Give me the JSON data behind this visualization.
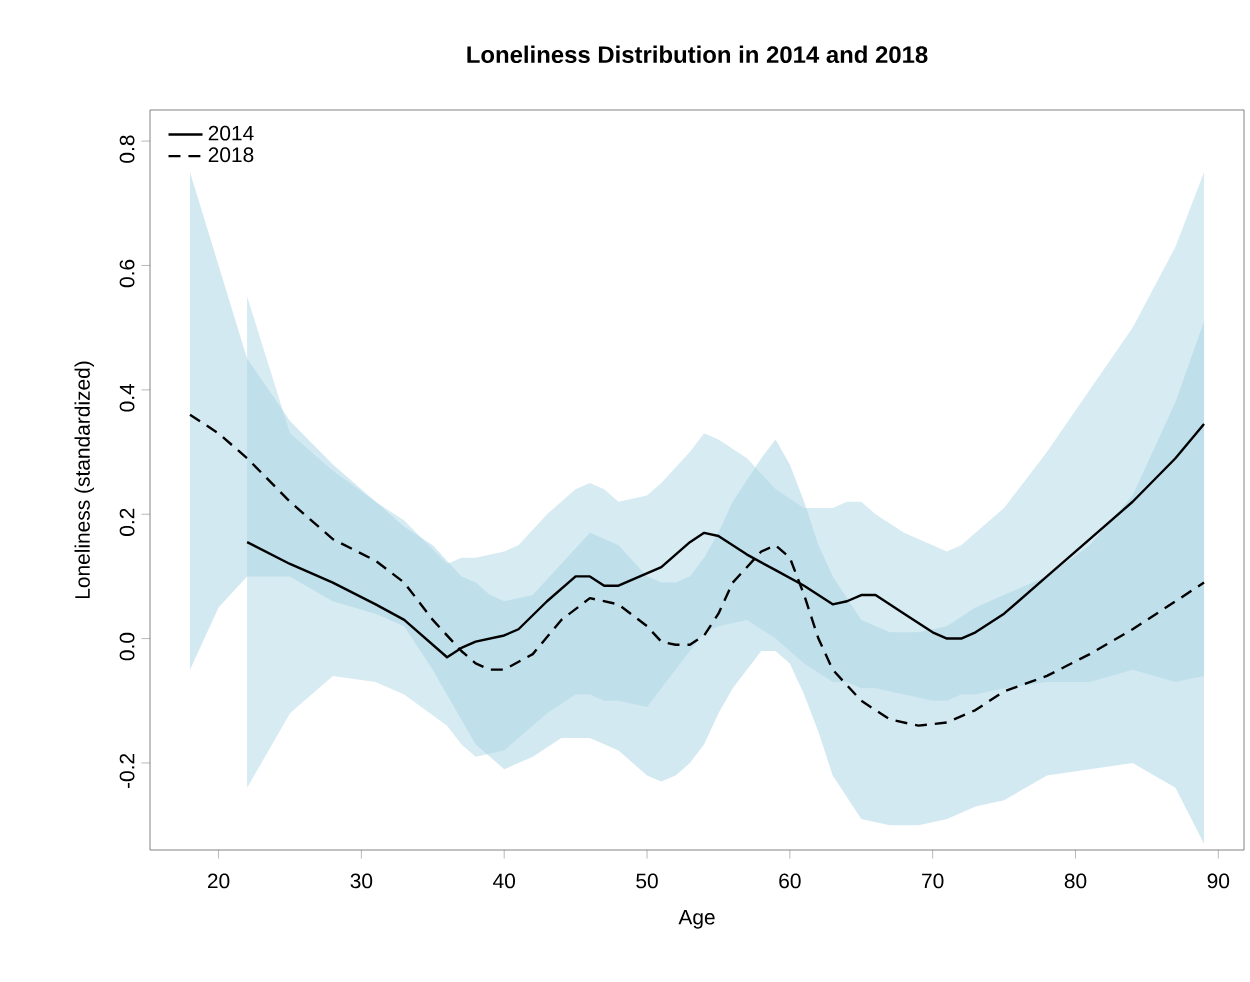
{
  "chart_data": {
    "type": "line",
    "title": "Loneliness Distribution in 2014 and 2018",
    "xlabel": "Age",
    "ylabel": "Loneliness (standardized)",
    "xlim": [
      15.2,
      91.8
    ],
    "ylim": [
      -0.34,
      0.85
    ],
    "xticks": [
      20,
      30,
      40,
      50,
      60,
      70,
      80,
      90
    ],
    "yticks": [
      -0.2,
      {
        "value": 0,
        "label": "0.0"
      },
      0.2,
      0.4,
      0.6,
      0.8
    ],
    "legend": "top left",
    "grid": false,
    "marker": "none",
    "series": [
      {
        "name": "2014",
        "color": "#000000",
        "line_style": "solid",
        "x": [
          22,
          25,
          28,
          31,
          33,
          36,
          37,
          38,
          40,
          41,
          43,
          45,
          46,
          47,
          48,
          50,
          51,
          53,
          54,
          55,
          57,
          59,
          61,
          63,
          64,
          65,
          66,
          68,
          70,
          71,
          72,
          73,
          75,
          78,
          81,
          84,
          87,
          89
        ],
        "values": [
          0.155,
          0.12,
          0.09,
          0.055,
          0.03,
          -0.03,
          -0.015,
          -0.005,
          0.005,
          0.015,
          0.06,
          0.1,
          0.1,
          0.085,
          0.085,
          0.105,
          0.115,
          0.155,
          0.17,
          0.165,
          0.135,
          0.11,
          0.085,
          0.055,
          0.06,
          0.07,
          0.07,
          0.04,
          0.01,
          0.0,
          0.0,
          0.01,
          0.04,
          0.1,
          0.16,
          0.22,
          0.29,
          0.345
        ],
        "lower": [
          -0.24,
          -0.12,
          -0.06,
          -0.07,
          -0.09,
          -0.14,
          -0.17,
          -0.19,
          -0.18,
          -0.16,
          -0.12,
          -0.09,
          -0.09,
          -0.1,
          -0.1,
          -0.11,
          -0.08,
          -0.02,
          0.01,
          0.02,
          0.03,
          0.0,
          -0.04,
          -0.07,
          -0.07,
          -0.08,
          -0.08,
          -0.09,
          -0.1,
          -0.1,
          -0.09,
          -0.09,
          -0.08,
          -0.07,
          -0.07,
          -0.05,
          -0.07,
          -0.06
        ],
        "upper": [
          0.55,
          0.33,
          0.27,
          0.22,
          0.19,
          0.12,
          0.13,
          0.13,
          0.14,
          0.15,
          0.2,
          0.24,
          0.25,
          0.24,
          0.22,
          0.23,
          0.25,
          0.3,
          0.33,
          0.32,
          0.29,
          0.24,
          0.21,
          0.21,
          0.22,
          0.22,
          0.2,
          0.17,
          0.15,
          0.14,
          0.15,
          0.17,
          0.21,
          0.3,
          0.4,
          0.5,
          0.63,
          0.75
        ]
      },
      {
        "name": "2018",
        "color": "#000000",
        "line_style": "dashed",
        "x": [
          18,
          20,
          22,
          25,
          28,
          31,
          33,
          35,
          37,
          38,
          39,
          40,
          42,
          44,
          46,
          48,
          50,
          51,
          52,
          53,
          54,
          55,
          56,
          58,
          59,
          60,
          61,
          62,
          63,
          65,
          67,
          69,
          71,
          73,
          75,
          78,
          81,
          84,
          87,
          89
        ],
        "values": [
          0.36,
          0.33,
          0.29,
          0.22,
          0.16,
          0.125,
          0.09,
          0.03,
          -0.02,
          -0.04,
          -0.05,
          -0.05,
          -0.025,
          0.03,
          0.065,
          0.055,
          0.02,
          -0.005,
          -0.01,
          -0.01,
          0.005,
          0.04,
          0.09,
          0.14,
          0.15,
          0.13,
          0.07,
          0.0,
          -0.05,
          -0.1,
          -0.13,
          -0.14,
          -0.135,
          -0.115,
          -0.085,
          -0.06,
          -0.025,
          0.015,
          0.06,
          0.09
        ],
        "lower": [
          -0.05,
          0.05,
          0.1,
          0.1,
          0.06,
          0.04,
          0.02,
          -0.05,
          -0.13,
          -0.17,
          -0.19,
          -0.21,
          -0.19,
          -0.16,
          -0.16,
          -0.18,
          -0.22,
          -0.23,
          -0.22,
          -0.2,
          -0.17,
          -0.12,
          -0.08,
          -0.02,
          -0.02,
          -0.04,
          -0.09,
          -0.15,
          -0.22,
          -0.29,
          -0.3,
          -0.3,
          -0.29,
          -0.27,
          -0.26,
          -0.22,
          -0.21,
          -0.2,
          -0.24,
          -0.33
        ],
        "upper": [
          0.75,
          0.6,
          0.45,
          0.35,
          0.28,
          0.22,
          0.18,
          0.15,
          0.1,
          0.09,
          0.07,
          0.06,
          0.07,
          0.12,
          0.17,
          0.15,
          0.1,
          0.09,
          0.09,
          0.1,
          0.13,
          0.17,
          0.22,
          0.29,
          0.32,
          0.28,
          0.22,
          0.15,
          0.1,
          0.03,
          0.01,
          0.01,
          0.02,
          0.05,
          0.07,
          0.1,
          0.15,
          0.23,
          0.38,
          0.51
        ]
      }
    ]
  }
}
